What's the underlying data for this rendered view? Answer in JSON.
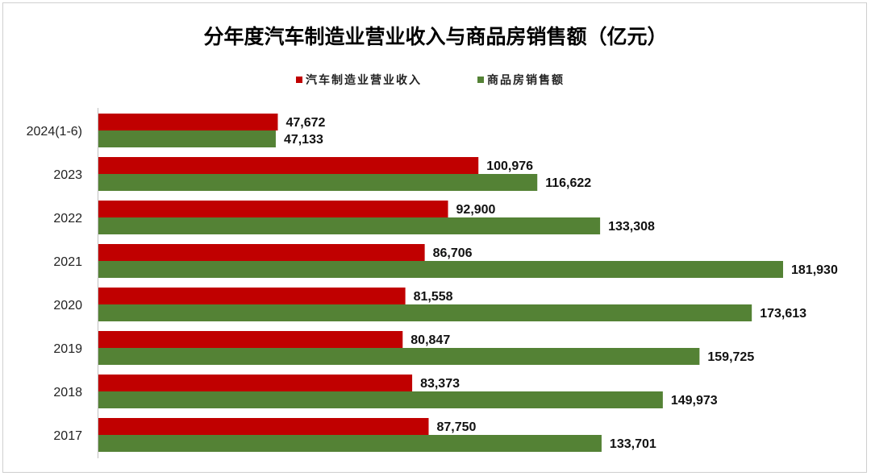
{
  "chart_data": {
    "type": "bar",
    "orientation": "horizontal",
    "title": "分年度汽车制造业营业收入与商品房销售额（亿元）",
    "legend_position": "top",
    "grid": false,
    "categories": [
      "2024(1-6)",
      "2023",
      "2022",
      "2021",
      "2020",
      "2019",
      "2018",
      "2017"
    ],
    "value_labels": {
      "car": [
        "47,672",
        "100,976",
        "92,900",
        "86,706",
        "81,558",
        "80,847",
        "83,373",
        "87,750"
      ],
      "house": [
        "47,133",
        "116,622",
        "133,308",
        "181,930",
        "173,613",
        "159,725",
        "149,973",
        "133,701"
      ]
    },
    "series": [
      {
        "name": "汽车制造业营业收入",
        "color": "#c00000",
        "values": [
          47672,
          100976,
          92900,
          86706,
          81558,
          80847,
          83373,
          87750
        ]
      },
      {
        "name": "商品房销售额",
        "color": "#548235",
        "values": [
          47133,
          116622,
          133308,
          181930,
          173613,
          159725,
          149973,
          133701
        ]
      }
    ],
    "xlim": [
      0,
      181930
    ]
  }
}
